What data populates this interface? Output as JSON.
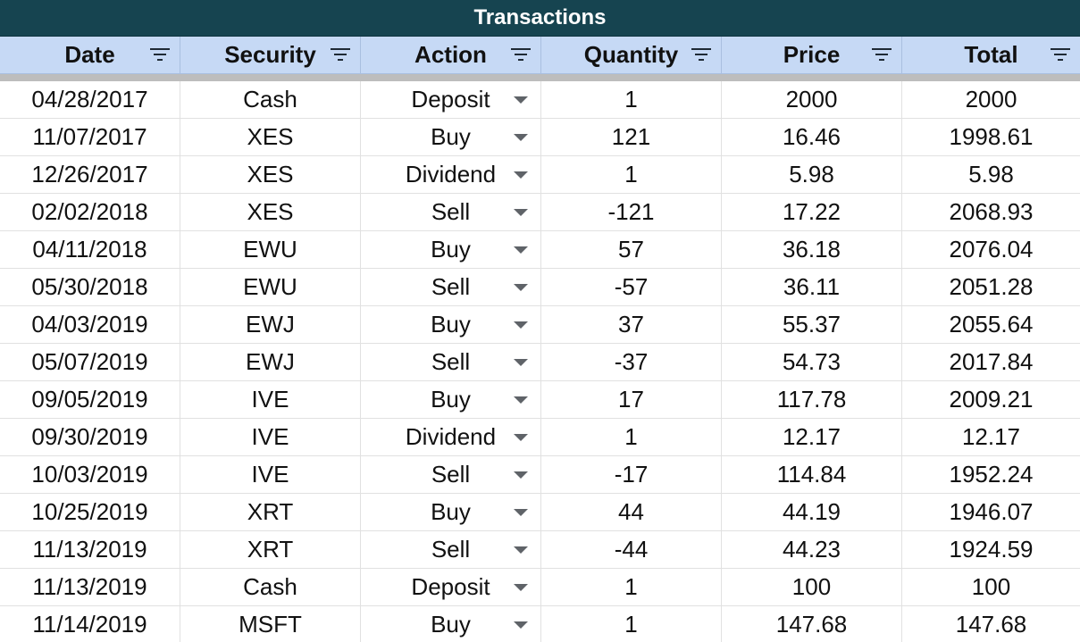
{
  "sheet": {
    "title": "Transactions",
    "columns": [
      {
        "label": "Date",
        "filter_icon": "filter-icon"
      },
      {
        "label": "Security",
        "filter_icon": "filter-icon"
      },
      {
        "label": "Action",
        "filter_icon": "filter-icon"
      },
      {
        "label": "Quantity",
        "filter_icon": "filter-icon"
      },
      {
        "label": "Price",
        "filter_icon": "filter-icon"
      },
      {
        "label": "Total",
        "filter_icon": "filter-icon"
      }
    ],
    "rows": [
      {
        "date": "04/28/2017",
        "security": "Cash",
        "action": "Deposit",
        "quantity": "1",
        "price": "2000",
        "total": "2000"
      },
      {
        "date": "11/07/2017",
        "security": "XES",
        "action": "Buy",
        "quantity": "121",
        "price": "16.46",
        "total": "1998.61"
      },
      {
        "date": "12/26/2017",
        "security": "XES",
        "action": "Dividend",
        "quantity": "1",
        "price": "5.98",
        "total": "5.98"
      },
      {
        "date": "02/02/2018",
        "security": "XES",
        "action": "Sell",
        "quantity": "-121",
        "price": "17.22",
        "total": "2068.93"
      },
      {
        "date": "04/11/2018",
        "security": "EWU",
        "action": "Buy",
        "quantity": "57",
        "price": "36.18",
        "total": "2076.04"
      },
      {
        "date": "05/30/2018",
        "security": "EWU",
        "action": "Sell",
        "quantity": "-57",
        "price": "36.11",
        "total": "2051.28"
      },
      {
        "date": "04/03/2019",
        "security": "EWJ",
        "action": "Buy",
        "quantity": "37",
        "price": "55.37",
        "total": "2055.64"
      },
      {
        "date": "05/07/2019",
        "security": "EWJ",
        "action": "Sell",
        "quantity": "-37",
        "price": "54.73",
        "total": "2017.84"
      },
      {
        "date": "09/05/2019",
        "security": "IVE",
        "action": "Buy",
        "quantity": "17",
        "price": "117.78",
        "total": "2009.21"
      },
      {
        "date": "09/30/2019",
        "security": "IVE",
        "action": "Dividend",
        "quantity": "1",
        "price": "12.17",
        "total": "12.17"
      },
      {
        "date": "10/03/2019",
        "security": "IVE",
        "action": "Sell",
        "quantity": "-17",
        "price": "114.84",
        "total": "1952.24"
      },
      {
        "date": "10/25/2019",
        "security": "XRT",
        "action": "Buy",
        "quantity": "44",
        "price": "44.19",
        "total": "1946.07"
      },
      {
        "date": "11/13/2019",
        "security": "XRT",
        "action": "Sell",
        "quantity": "-44",
        "price": "44.23",
        "total": "1924.59"
      },
      {
        "date": "11/13/2019",
        "security": "Cash",
        "action": "Deposit",
        "quantity": "1",
        "price": "100",
        "total": "100"
      },
      {
        "date": "11/14/2019",
        "security": "MSFT",
        "action": "Buy",
        "quantity": "1",
        "price": "147.68",
        "total": "147.68"
      }
    ],
    "action_dropdown_icon": "dropdown-arrow-icon"
  },
  "colors": {
    "title_bg": "#164450",
    "header_bg": "#c6d9f5",
    "freeze_bar": "#bdbdbd",
    "grid": "#e1e1e1"
  }
}
